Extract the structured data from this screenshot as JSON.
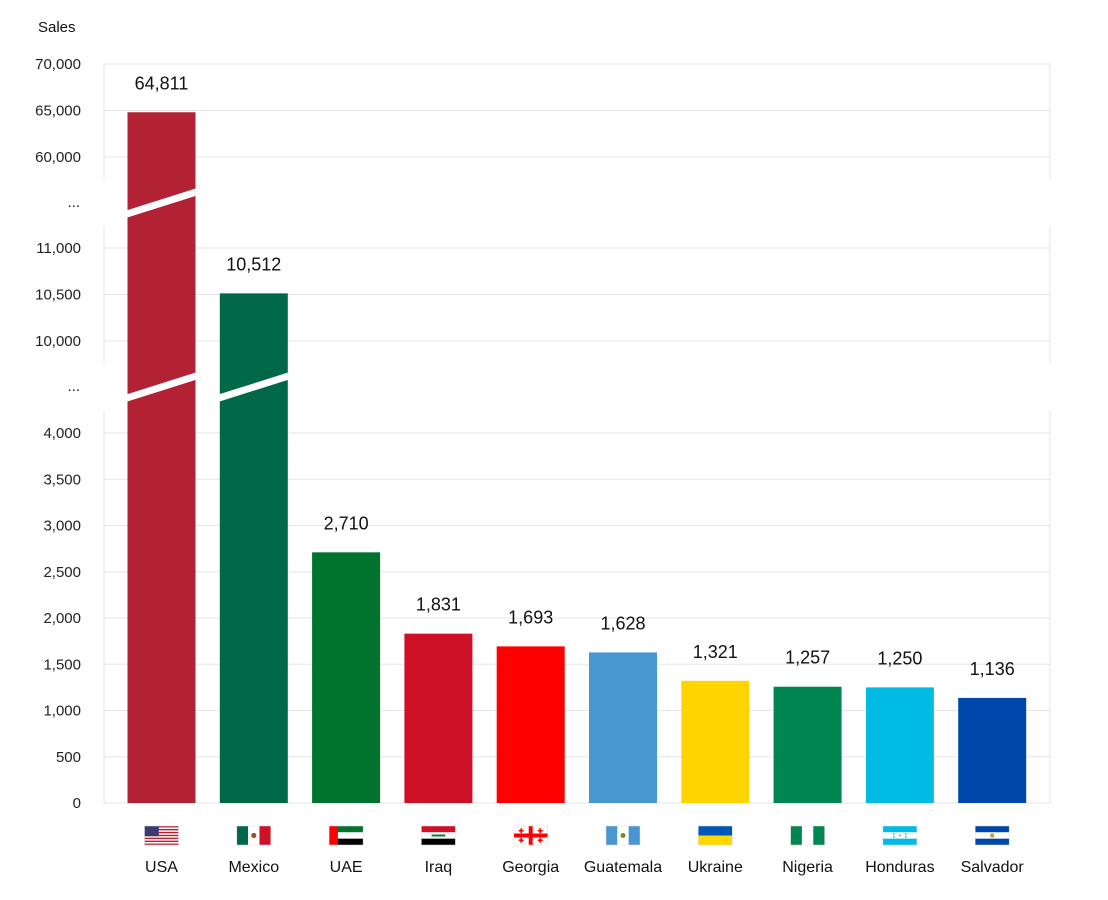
{
  "chart_data": {
    "type": "bar",
    "ylabel": "Sales",
    "scale": "broken",
    "grid": true,
    "categories": [
      "USA",
      "Mexico",
      "UAE",
      "Iraq",
      "Georgia",
      "Guatemala",
      "Ukraine",
      "Nigeria",
      "Honduras",
      "Salvador"
    ],
    "values": [
      64811,
      10512,
      2710,
      1831,
      1693,
      1628,
      1321,
      1257,
      1250,
      1136
    ],
    "value_labels": [
      "64,811",
      "10,512",
      "2,710",
      "1,831",
      "1,693",
      "1,628",
      "1,321",
      "1,257",
      "1,250",
      "1,136"
    ],
    "bar_colors": [
      "#B22234",
      "#006847",
      "#00732F",
      "#CE1126",
      "#FF0000",
      "#4997D0",
      "#FFD500",
      "#008751",
      "#00BCE4",
      "#0047AB"
    ],
    "flag_icons": [
      "flag-usa-icon",
      "flag-mexico-icon",
      "flag-uae-icon",
      "flag-iraq-icon",
      "flag-georgia-icon",
      "flag-guatemala-icon",
      "flag-ukraine-icon",
      "flag-nigeria-icon",
      "flag-honduras-icon",
      "flag-salvador-icon"
    ],
    "axis_segments": [
      {
        "range": [
          0,
          4000
        ],
        "ticks": [
          "0",
          "500",
          "1,000",
          "1,500",
          "2,000",
          "2,500",
          "3,000",
          "3,500",
          "4,000"
        ],
        "tick_values": [
          0,
          500,
          1000,
          1500,
          2000,
          2500,
          3000,
          3500,
          4000
        ]
      },
      {
        "range": [
          10000,
          11000
        ],
        "ticks": [
          "10,000",
          "10,500",
          "11,000"
        ],
        "tick_values": [
          10000,
          10500,
          11000
        ]
      },
      {
        "range": [
          60000,
          70000
        ],
        "ticks": [
          "60,000",
          "65,000",
          "70,000"
        ],
        "tick_values": [
          60000,
          65000,
          70000
        ]
      }
    ],
    "break_label": "..."
  }
}
